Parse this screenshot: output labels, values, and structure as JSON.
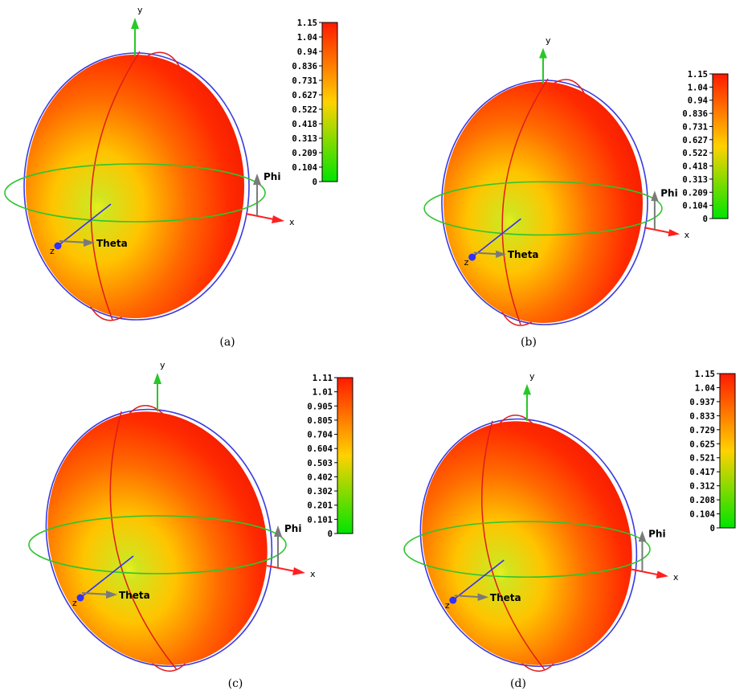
{
  "colors": {
    "max": "#ff1a00",
    "mid": "#ffd200",
    "min": "#00e400",
    "phi_ring": "#2ec42e",
    "theta_ring": "#e01b1b",
    "outer_ring": "#3a3ae0",
    "x_axis": "#ff2020",
    "y_axis": "#28c828",
    "z_axis": "#3030ff",
    "local_axis": "#7a7a7a"
  },
  "axis_labels": {
    "x": "x",
    "y": "y",
    "z": "z",
    "theta": "Theta",
    "phi": "Phi"
  },
  "panels": [
    {
      "caption": "(a)",
      "colorbar": {
        "ticks": [
          "1.15",
          "1.04",
          "0.94",
          "0.836",
          "0.731",
          "0.627",
          "0.522",
          "0.418",
          "0.313",
          "0.209",
          "0.104",
          "0"
        ]
      }
    },
    {
      "caption": "(b)",
      "colorbar": {
        "ticks": [
          "1.15",
          "1.04",
          "0.94",
          "0.836",
          "0.731",
          "0.627",
          "0.522",
          "0.418",
          "0.313",
          "0.209",
          "0.104",
          "0"
        ]
      }
    },
    {
      "caption": "(c)",
      "colorbar": {
        "ticks": [
          "1.11",
          "1.01",
          "0.905",
          "0.805",
          "0.704",
          "0.604",
          "0.503",
          "0.402",
          "0.302",
          "0.201",
          "0.101",
          "0"
        ]
      }
    },
    {
      "caption": "(d)",
      "colorbar": {
        "ticks": [
          "1.15",
          "1.04",
          "0.937",
          "0.833",
          "0.729",
          "0.625",
          "0.521",
          "0.417",
          "0.312",
          "0.208",
          "0.104",
          "0"
        ]
      }
    }
  ]
}
